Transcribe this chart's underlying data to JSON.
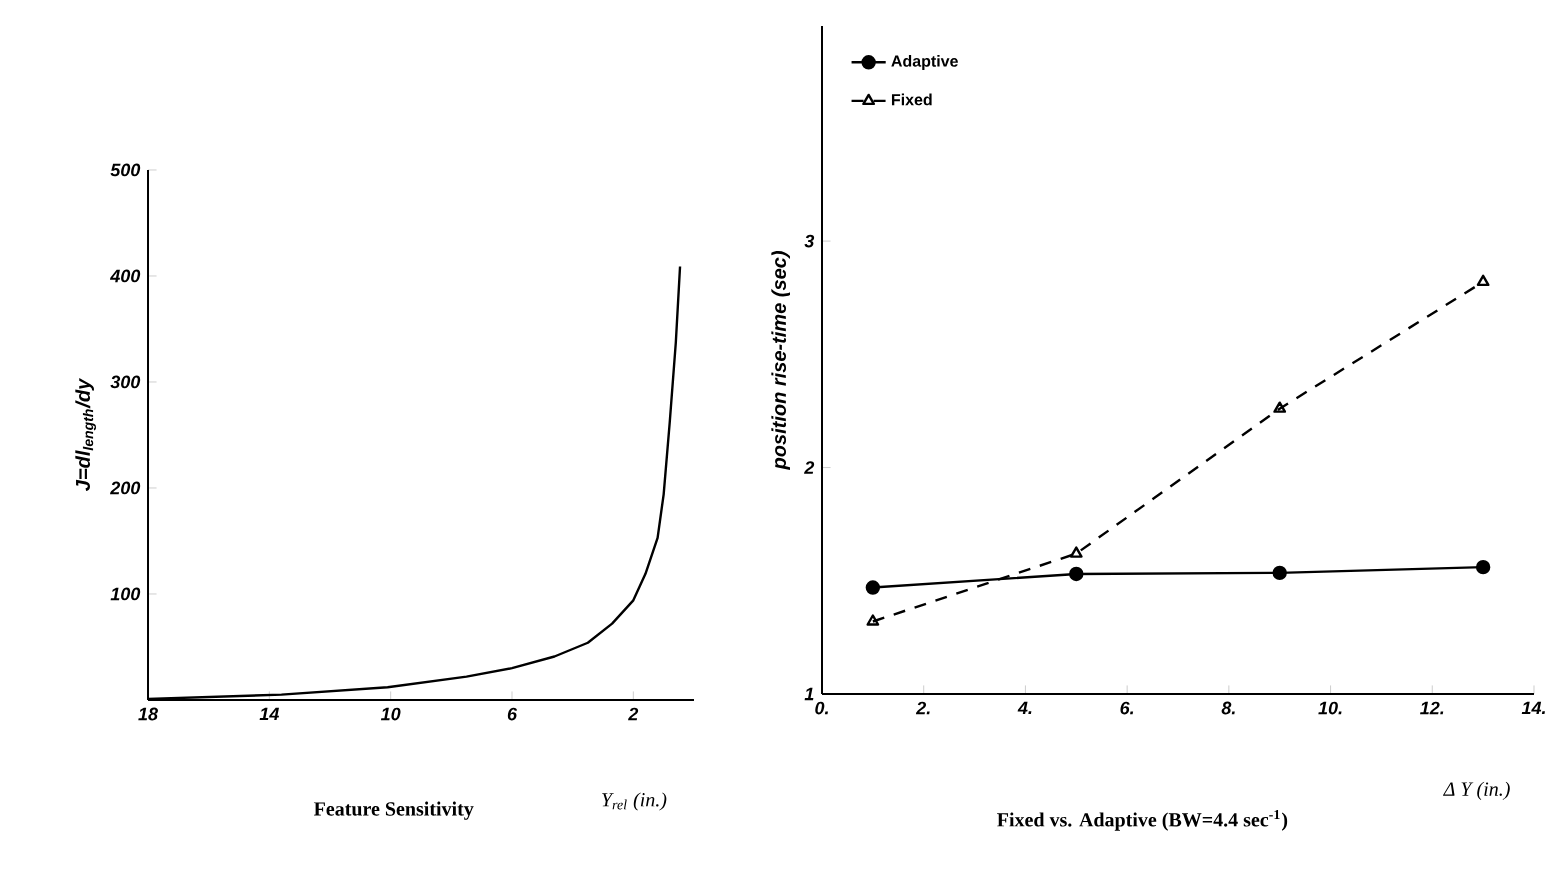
{
  "chart_data": [
    {
      "type": "line",
      "title": "Feature Sensitivity",
      "xlabel": "Y$_{rel}$ (in.)",
      "ylabel": "J=dl$_{length}$/dy",
      "xlim": [
        18,
        0
      ],
      "ylim": [
        0,
        500
      ],
      "xticks": [
        18,
        14,
        10,
        6,
        2
      ],
      "yticks": [
        100,
        200,
        300,
        400,
        500
      ],
      "grid": false,
      "legend": false,
      "series": [
        {
          "color": "#000000",
          "line_style": "solid",
          "x": [
            18,
            13.6,
            10.1,
            7.5,
            6,
            4.6,
            3.5,
            2.7,
            2,
            1.6,
            1.2,
            1.0,
            0.8,
            0.6,
            0.46
          ],
          "values": [
            1,
            5,
            12,
            22,
            30,
            41,
            54,
            72,
            94,
            119,
            153,
            194,
            262,
            337,
            409
          ]
        }
      ]
    },
    {
      "type": "line",
      "title": "Fixed vs. Adaptive (BW=4.4 sec$^{-1}$)",
      "xlabel": "Δ Y (in.)",
      "ylabel": "position rise-time (sec)",
      "xlim": [
        0,
        14
      ],
      "ylim": [
        1,
        3.95
      ],
      "xticks": [
        {
          "value": 0,
          "label": "0."
        },
        {
          "value": 2,
          "label": "2."
        },
        {
          "value": 4,
          "label": "4."
        },
        {
          "value": 6,
          "label": "6."
        },
        {
          "value": 8,
          "label": "8."
        },
        {
          "value": 10,
          "label": "10."
        },
        {
          "value": 12,
          "label": "12."
        },
        {
          "value": 14,
          "label": "14."
        }
      ],
      "yticks": [
        1,
        2,
        3
      ],
      "grid": false,
      "legend": "top left",
      "x": [
        1,
        5,
        9,
        13
      ],
      "series": [
        {
          "name": "Adaptive",
          "color": "#000000",
          "marker": "circle",
          "line_style": "solid",
          "values": [
            1.47,
            1.53,
            1.535,
            1.56
          ]
        },
        {
          "name": "Fixed",
          "color": "#000000",
          "marker": "triangle",
          "line_style": "dashed",
          "values": [
            1.32,
            1.62,
            2.26,
            2.82
          ]
        }
      ]
    }
  ]
}
